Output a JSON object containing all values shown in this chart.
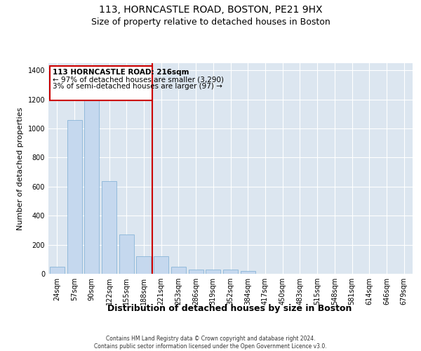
{
  "title1": "113, HORNCASTLE ROAD, BOSTON, PE21 9HX",
  "title2": "Size of property relative to detached houses in Boston",
  "xlabel": "Distribution of detached houses by size in Boston",
  "ylabel": "Number of detached properties",
  "categories": [
    "24sqm",
    "57sqm",
    "90sqm",
    "122sqm",
    "155sqm",
    "188sqm",
    "221sqm",
    "253sqm",
    "286sqm",
    "319sqm",
    "352sqm",
    "384sqm",
    "417sqm",
    "450sqm",
    "483sqm",
    "515sqm",
    "548sqm",
    "581sqm",
    "614sqm",
    "646sqm",
    "679sqm"
  ],
  "values": [
    50,
    1060,
    1210,
    640,
    270,
    120,
    120,
    50,
    28,
    28,
    30,
    18,
    0,
    0,
    0,
    0,
    0,
    0,
    0,
    0,
    0
  ],
  "bar_color": "#c5d8ee",
  "bar_edge_color": "#7aadd4",
  "property_line_bin": 6,
  "annotation_text1": "113 HORNCASTLE ROAD: 216sqm",
  "annotation_text2": "← 97% of detached houses are smaller (3,290)",
  "annotation_text3": "3% of semi-detached houses are larger (97) →",
  "vline_color": "#cc0000",
  "annotation_box_color": "#cc0000",
  "ylim": [
    0,
    1450
  ],
  "yticks": [
    0,
    200,
    400,
    600,
    800,
    1000,
    1200,
    1400
  ],
  "background_color": "#dce6f0",
  "footer1": "Contains HM Land Registry data © Crown copyright and database right 2024.",
  "footer2": "Contains public sector information licensed under the Open Government Licence v3.0.",
  "title1_fontsize": 10,
  "title2_fontsize": 9,
  "xlabel_fontsize": 9,
  "ylabel_fontsize": 8,
  "tick_fontsize": 7,
  "annotation_fontsize": 7.5
}
